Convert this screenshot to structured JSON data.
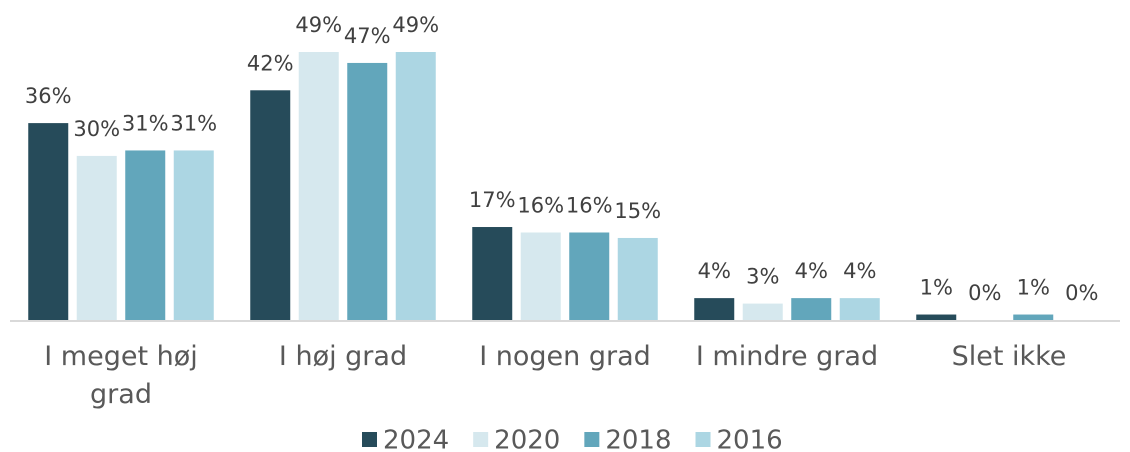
{
  "chart_data": {
    "type": "bar",
    "categories": [
      "I meget høj grad",
      "I høj grad",
      "I nogen grad",
      "I mindre grad",
      "Slet ikke"
    ],
    "series": [
      {
        "name": "2024",
        "color": "#264b5a",
        "values": [
          36,
          42,
          17,
          4,
          1
        ],
        "value_labels": [
          "36%",
          "42%",
          "17%",
          "4%",
          "1%"
        ]
      },
      {
        "name": "2020",
        "color": "#d6e8ee",
        "values": [
          30,
          49,
          16,
          3,
          0
        ],
        "value_labels": [
          "30%",
          "49%",
          "16%",
          "3%",
          "0%"
        ]
      },
      {
        "name": "2018",
        "color": "#62a6bb",
        "values": [
          31,
          47,
          16,
          4,
          1
        ],
        "value_labels": [
          "31%",
          "47%",
          "16%",
          "4%",
          "1%"
        ]
      },
      {
        "name": "2016",
        "color": "#acd6e3",
        "values": [
          31,
          49,
          15,
          4,
          0
        ],
        "value_labels": [
          "31%",
          "49%",
          "15%",
          "4%",
          "0%"
        ]
      }
    ],
    "legend": "bottom"
  }
}
